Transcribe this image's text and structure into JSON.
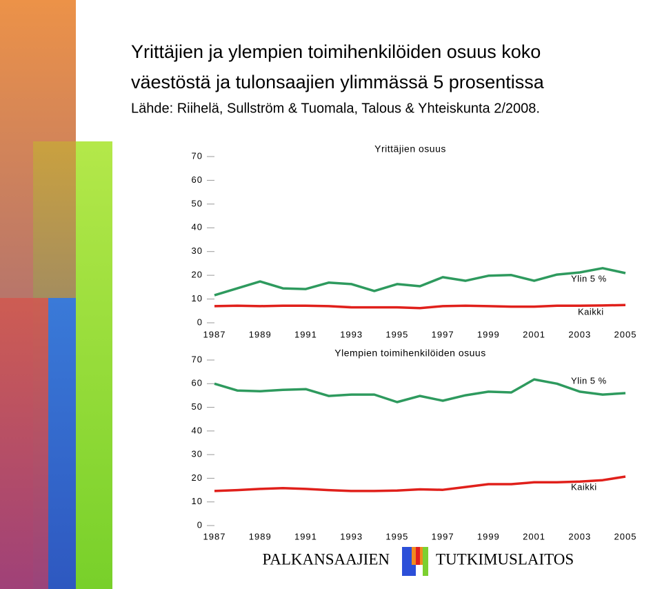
{
  "slide": {
    "title_lines": [
      "Yrittäjien ja ylempien toimihenkilöiden osuus koko",
      "väestöstä ja tulonsaajien ylimmässä 5 prosentissa"
    ],
    "source": "Lähde: Riihelä, Sullström & Tuomala, Talous & Yhteiskunta 2/2008."
  },
  "footer": {
    "left": "PALKANSAAJIEN",
    "right": "TUTKIMUSLAITOS"
  },
  "chart_data": [
    {
      "type": "line",
      "title": "Yrittäjien osuus",
      "x": [
        1987,
        1988,
        1989,
        1990,
        1991,
        1992,
        1993,
        1994,
        1995,
        1996,
        1997,
        1998,
        1999,
        2000,
        2001,
        2002,
        2003,
        2004,
        2005
      ],
      "xlim": [
        1987,
        2005
      ],
      "xticks": [
        1987,
        1989,
        1991,
        1993,
        1995,
        1997,
        1999,
        2001,
        2003,
        2005
      ],
      "ylim": [
        0,
        70
      ],
      "yticks": [
        0,
        10,
        20,
        30,
        40,
        50,
        60,
        70
      ],
      "series": [
        {
          "name": "Ylin 5 %",
          "color": "#2e9a5e",
          "values": [
            11.6,
            14.5,
            17.4,
            14.5,
            14.2,
            16.9,
            16.3,
            13.4,
            16.3,
            15.4,
            19.2,
            17.7,
            19.8,
            20.1,
            17.7,
            20.3,
            21.2,
            23.0,
            20.9
          ]
        },
        {
          "name": "Kaikki",
          "color": "#e0201b",
          "values": [
            7.0,
            7.2,
            7.0,
            7.2,
            7.2,
            7.0,
            6.5,
            6.5,
            6.5,
            6.2,
            7.0,
            7.2,
            7.0,
            6.8,
            6.8,
            7.2,
            7.2,
            7.3,
            7.5
          ]
        }
      ]
    },
    {
      "type": "line",
      "title": "Ylempien toimihenkilöiden osuus",
      "x": [
        1987,
        1988,
        1989,
        1990,
        1991,
        1992,
        1993,
        1994,
        1995,
        1996,
        1997,
        1998,
        1999,
        2000,
        2001,
        2002,
        2003,
        2004,
        2005
      ],
      "xlim": [
        1987,
        2005
      ],
      "xticks": [
        1987,
        1989,
        1991,
        1993,
        1995,
        1997,
        1999,
        2001,
        2003,
        2005
      ],
      "ylim": [
        0,
        70
      ],
      "yticks": [
        0,
        10,
        20,
        30,
        40,
        50,
        60,
        70
      ],
      "series": [
        {
          "name": "Ylin 5 %",
          "color": "#2e9a5e",
          "values": [
            60.0,
            57.1,
            56.8,
            57.4,
            57.7,
            54.8,
            55.4,
            55.4,
            52.2,
            54.8,
            52.8,
            55.1,
            56.6,
            56.3,
            61.8,
            60.0,
            56.6,
            55.4,
            56.0
          ]
        },
        {
          "name": "Kaikki",
          "color": "#e0201b",
          "values": [
            14.6,
            15.0,
            15.5,
            15.8,
            15.5,
            15.0,
            14.6,
            14.6,
            14.8,
            15.3,
            15.1,
            16.3,
            17.5,
            17.5,
            18.3,
            18.3,
            18.6,
            19.2,
            20.7
          ]
        }
      ]
    }
  ]
}
